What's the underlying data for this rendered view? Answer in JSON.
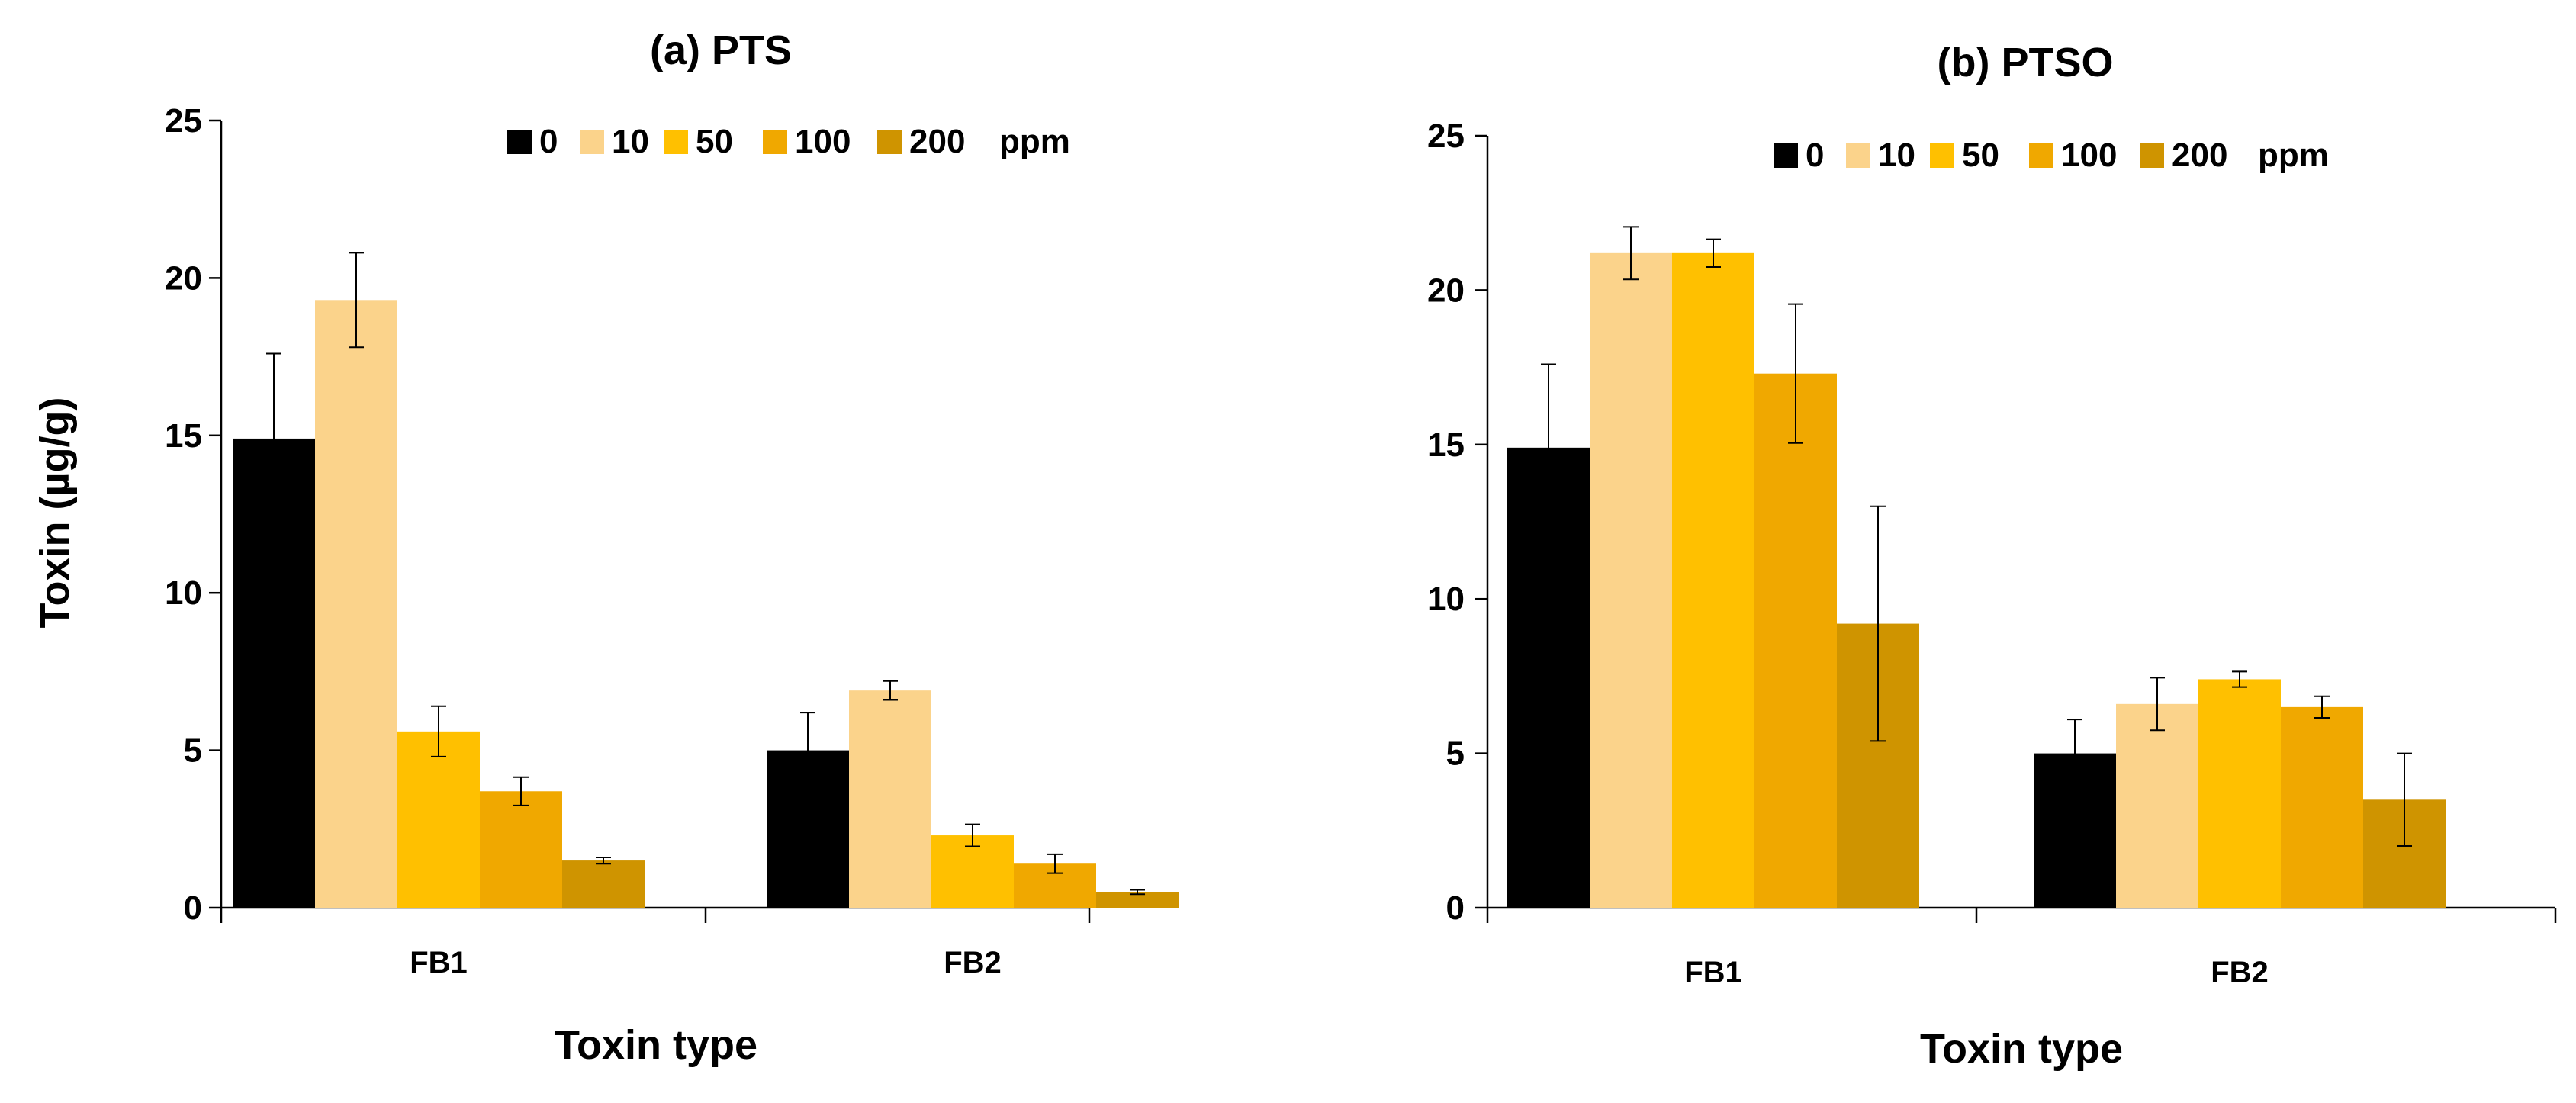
{
  "chart_data": [
    {
      "type": "bar",
      "title": "(a) PTS",
      "xlabel": "Toxin type",
      "ylabel": "Toxin (µg/g)",
      "ylim": [
        0,
        25
      ],
      "yticks": [
        0,
        5,
        10,
        15,
        20,
        25
      ],
      "categories": [
        "FB1",
        "FB2"
      ],
      "legend_unit": "ppm",
      "legend_position": "top-right",
      "series": [
        {
          "name": "0",
          "color": "#000000",
          "values": [
            14.9,
            5.0
          ],
          "errors": [
            2.7,
            1.2
          ]
        },
        {
          "name": "10",
          "color": "#FBD38B",
          "values": [
            19.3,
            6.9
          ],
          "errors": [
            1.5,
            0.3
          ]
        },
        {
          "name": "50",
          "color": "#FFC000",
          "values": [
            5.6,
            2.3
          ],
          "errors": [
            0.8,
            0.35
          ]
        },
        {
          "name": "100",
          "color": "#F0A800",
          "values": [
            3.7,
            1.4
          ],
          "errors": [
            0.45,
            0.3
          ]
        },
        {
          "name": "200",
          "color": "#CF9400",
          "values": [
            1.5,
            0.5
          ],
          "errors": [
            0.1,
            0.07
          ]
        }
      ]
    },
    {
      "type": "bar",
      "title": "(b) PTSO",
      "xlabel": "Toxin type",
      "ylabel": "",
      "ylim": [
        0,
        25
      ],
      "yticks": [
        0,
        5,
        10,
        15,
        20,
        25
      ],
      "categories": [
        "FB1",
        "FB2"
      ],
      "legend_unit": "ppm",
      "legend_position": "top-right",
      "series": [
        {
          "name": "0",
          "color": "#000000",
          "values": [
            14.9,
            5.0
          ],
          "errors": [
            2.7,
            1.1
          ]
        },
        {
          "name": "10",
          "color": "#FBD38B",
          "values": [
            21.2,
            6.6
          ],
          "errors": [
            0.85,
            0.85
          ]
        },
        {
          "name": "50",
          "color": "#FFC000",
          "values": [
            21.2,
            7.4
          ],
          "errors": [
            0.45,
            0.25
          ]
        },
        {
          "name": "100",
          "color": "#F0A800",
          "values": [
            17.3,
            6.5
          ],
          "errors": [
            2.25,
            0.35
          ]
        },
        {
          "name": "200",
          "color": "#CF9400",
          "values": [
            9.2,
            3.5
          ],
          "errors": [
            3.8,
            1.5
          ]
        }
      ]
    }
  ]
}
